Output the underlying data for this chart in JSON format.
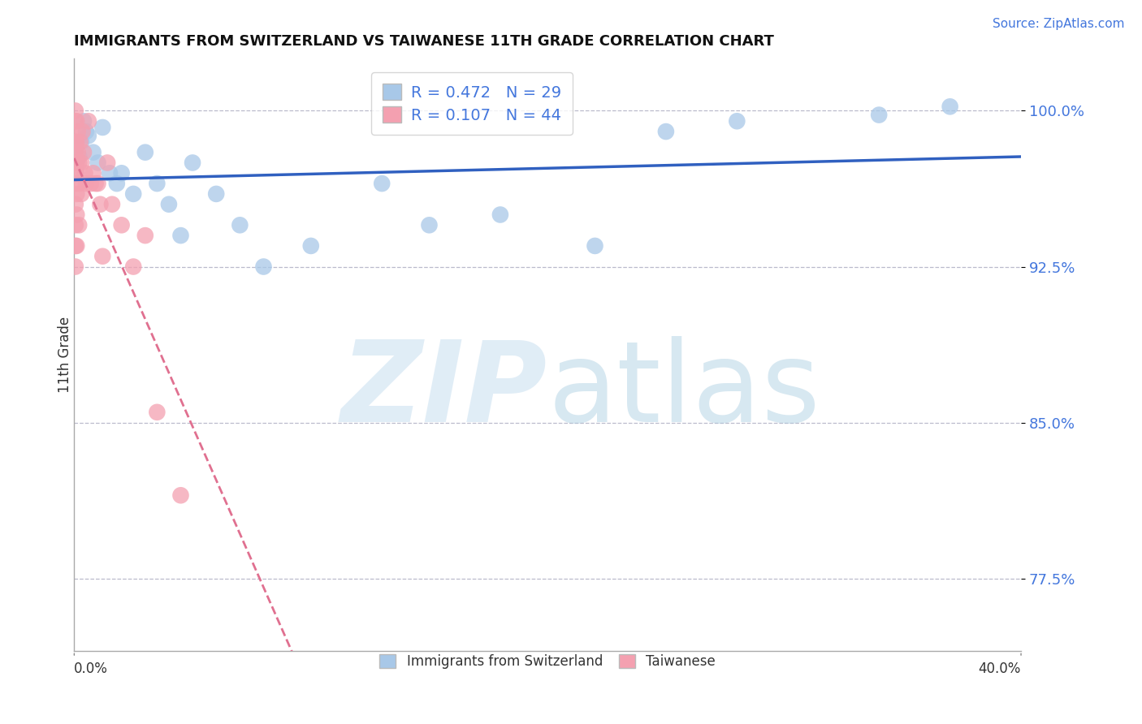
{
  "title": "IMMIGRANTS FROM SWITZERLAND VS TAIWANESE 11TH GRADE CORRELATION CHART",
  "source": "Source: ZipAtlas.com",
  "ylabel": "11th Grade",
  "x_min": 0.0,
  "x_max": 40.0,
  "y_min": 74.0,
  "y_max": 102.5,
  "yticks": [
    77.5,
    85.0,
    92.5,
    100.0
  ],
  "blue_R": 0.472,
  "blue_N": 29,
  "pink_R": 0.107,
  "pink_N": 44,
  "blue_color": "#a8c8e8",
  "pink_color": "#f4a0b0",
  "blue_line_color": "#3060c0",
  "pink_line_color": "#e07090",
  "watermark_zip": "ZIP",
  "watermark_atlas": "atlas",
  "blue_scatter_x": [
    0.2,
    0.3,
    0.4,
    0.5,
    0.6,
    0.8,
    1.0,
    1.2,
    1.5,
    1.8,
    2.0,
    2.5,
    3.0,
    3.5,
    4.0,
    4.5,
    5.0,
    6.0,
    7.0,
    8.0,
    10.0,
    13.0,
    15.0,
    18.0,
    22.0,
    25.0,
    28.0,
    34.0,
    37.0
  ],
  "blue_scatter_y": [
    97.8,
    98.5,
    99.5,
    99.0,
    98.8,
    98.0,
    97.5,
    99.2,
    97.0,
    96.5,
    97.0,
    96.0,
    98.0,
    96.5,
    95.5,
    94.0,
    97.5,
    96.0,
    94.5,
    92.5,
    93.5,
    96.5,
    94.5,
    95.0,
    93.5,
    99.0,
    99.5,
    99.8,
    100.2
  ],
  "pink_scatter_x": [
    0.05,
    0.05,
    0.05,
    0.05,
    0.05,
    0.05,
    0.05,
    0.05,
    0.05,
    0.05,
    0.05,
    0.1,
    0.1,
    0.1,
    0.1,
    0.1,
    0.1,
    0.1,
    0.15,
    0.15,
    0.2,
    0.2,
    0.2,
    0.25,
    0.3,
    0.3,
    0.35,
    0.4,
    0.45,
    0.5,
    0.6,
    0.7,
    0.8,
    0.9,
    1.0,
    1.1,
    1.2,
    1.4,
    1.6,
    2.0,
    2.5,
    3.0,
    3.5,
    4.5
  ],
  "pink_scatter_y": [
    100.0,
    99.5,
    98.5,
    98.0,
    97.5,
    97.0,
    96.5,
    95.5,
    94.5,
    93.5,
    92.5,
    99.5,
    98.5,
    97.5,
    97.0,
    96.0,
    95.0,
    93.5,
    99.0,
    98.0,
    97.5,
    96.5,
    94.5,
    98.5,
    97.5,
    96.0,
    99.0,
    98.0,
    97.0,
    96.5,
    99.5,
    96.5,
    97.0,
    96.5,
    96.5,
    95.5,
    93.0,
    97.5,
    95.5,
    94.5,
    92.5,
    94.0,
    85.5,
    81.5
  ]
}
